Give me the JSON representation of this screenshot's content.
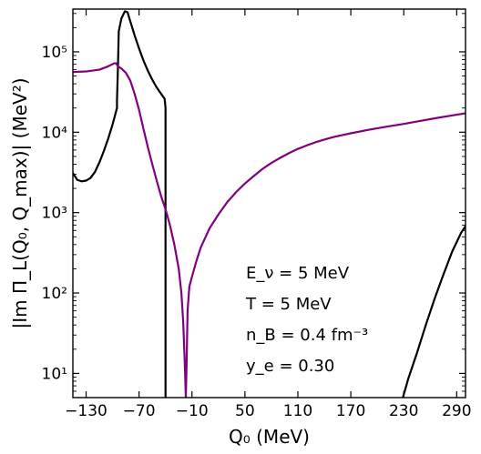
{
  "chart_data": {
    "type": "line",
    "xlabel": "Q₀ (MeV)",
    "ylabel": "|Im Π_L(Q₀, Q_max)| (MeV²)",
    "xlim": [
      -145,
      300
    ],
    "ylim": [
      5,
      340000
    ],
    "yscale": "log",
    "grid": false,
    "legend": "none",
    "x_ticks": [
      -130,
      -70,
      -10,
      50,
      110,
      170,
      230,
      290
    ],
    "x_tick_labels": [
      "−130",
      "−70",
      "−10",
      "50",
      "110",
      "170",
      "230",
      "290"
    ],
    "y_ticks": [
      10,
      100,
      1000,
      10000,
      100000
    ],
    "y_tick_labels": [
      "10¹",
      "10²",
      "10³",
      "10⁴",
      "10⁵"
    ],
    "annotations": [
      "E_ν = 5 MeV",
      "T = 5 MeV",
      "n_B = 0.4 fm⁻³",
      "y_e = 0.30"
    ],
    "series": [
      {
        "color": "#000000",
        "segments": [
          [
            [
              -145,
              3100
            ],
            [
              -140,
              2550
            ],
            [
              -135,
              2450
            ],
            [
              -130,
              2500
            ],
            [
              -125,
              2700
            ],
            [
              -120,
              3200
            ],
            [
              -115,
              4200
            ],
            [
              -110,
              5800
            ],
            [
              -105,
              8300
            ],
            [
              -100,
              12500
            ],
            [
              -95,
              20000
            ],
            [
              -95,
              25000
            ],
            [
              -94,
              60000
            ],
            [
              -93,
              180000
            ],
            [
              -90,
              260000
            ],
            [
              -86,
              320000
            ],
            [
              -83,
              310000
            ],
            [
              -80,
              240000
            ],
            [
              -75,
              160000
            ],
            [
              -70,
              110000
            ],
            [
              -65,
              78000
            ],
            [
              -60,
              58000
            ],
            [
              -55,
              45000
            ],
            [
              -50,
              36000
            ],
            [
              -45,
              30000
            ],
            [
              -41,
              26000
            ],
            [
              -40,
              20000
            ],
            [
              -40,
              5
            ]
          ],
          [
            [
              229,
              5
            ],
            [
              235,
              8.5
            ],
            [
              245,
              18
            ],
            [
              255,
              40
            ],
            [
              265,
              85
            ],
            [
              275,
              170
            ],
            [
              285,
              330
            ],
            [
              295,
              560
            ],
            [
              300,
              680
            ]
          ]
        ]
      },
      {
        "color": "#800080",
        "segments": [
          [
            [
              -145,
              56000
            ],
            [
              -130,
              57000
            ],
            [
              -115,
              60000
            ],
            [
              -105,
              66000
            ],
            [
              -98,
              72000
            ],
            [
              -96,
              72000
            ],
            [
              -94,
              66000
            ],
            [
              -90,
              62000
            ],
            [
              -85,
              55000
            ],
            [
              -80,
              44000
            ],
            [
              -75,
              30000
            ],
            [
              -70,
              19000
            ],
            [
              -65,
              11000
            ],
            [
              -60,
              6500
            ],
            [
              -55,
              4000
            ],
            [
              -50,
              2500
            ],
            [
              -45,
              1600
            ],
            [
              -40,
              1100
            ],
            [
              -35,
              700
            ],
            [
              -30,
              400
            ],
            [
              -25,
              200
            ],
            [
              -22,
              100
            ],
            [
              -20,
              45
            ],
            [
              -18,
              12
            ],
            [
              -17,
              5
            ],
            [
              -16,
              15
            ],
            [
              -15,
              60
            ],
            [
              -13,
              120
            ],
            [
              -10,
              160
            ],
            [
              -5,
              250
            ],
            [
              0,
              370
            ],
            [
              10,
              640
            ],
            [
              20,
              950
            ],
            [
              30,
              1350
            ],
            [
              40,
              1800
            ],
            [
              50,
              2300
            ],
            [
              60,
              2850
            ],
            [
              70,
              3500
            ],
            [
              80,
              4150
            ],
            [
              90,
              4800
            ],
            [
              100,
              5500
            ],
            [
              110,
              6200
            ],
            [
              120,
              6850
            ],
            [
              130,
              7500
            ],
            [
              140,
              8100
            ],
            [
              150,
              8700
            ],
            [
              170,
              9700
            ],
            [
              190,
              10700
            ],
            [
              210,
              11700
            ],
            [
              230,
              12700
            ],
            [
              250,
              13900
            ],
            [
              270,
              15200
            ],
            [
              290,
              16500
            ],
            [
              300,
              17200
            ]
          ]
        ]
      }
    ]
  }
}
